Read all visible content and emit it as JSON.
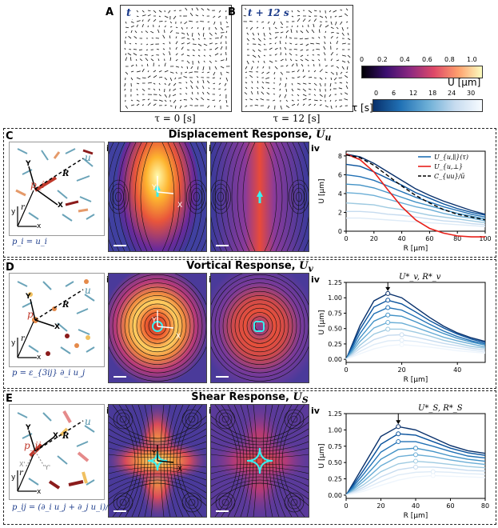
{
  "top": {
    "panelA": {
      "letter": "A",
      "time_label": "t",
      "tau_label": "τ = 0 [s]"
    },
    "panelB": {
      "letter": "B",
      "time_label": "t + 12 s",
      "tau_label": "τ = 12 [s]"
    },
    "colorbar_U": {
      "label": "U [μm]",
      "ticks": [
        "0",
        "0.2",
        "0.4",
        "0.6",
        "0.8",
        "1.0"
      ],
      "colors": [
        "#000004",
        "#3b0f70",
        "#8c2981",
        "#de4968",
        "#fe9f6d",
        "#fcfdbf"
      ]
    },
    "colorbar_tau": {
      "label": "τ [s]",
      "ticks": [
        "0",
        "6",
        "12",
        "18",
        "24",
        "30"
      ],
      "colors": [
        "#08306b",
        "#2171b5",
        "#6baed6",
        "#c6dbef",
        "#f7fbff"
      ]
    }
  },
  "sectionC": {
    "letter": "C",
    "title": "Displacement Response, ",
    "title_sym": "U",
    "title_sub": "u",
    "sub_i": "i",
    "sub_ii": "ii",
    "sub_iii": "iii",
    "sub_iv": "iv",
    "formula": "p_i = u_i",
    "schematic_labels": {
      "p": "p_i",
      "u": "u",
      "Y": "Y",
      "X": "X",
      "R": "R",
      "r": "r",
      "y": "y",
      "x": "x"
    },
    "axis_labels": {
      "Y": "Y",
      "X": "X"
    },
    "chart_legend": [
      "U_{u,∥}(τ)",
      "U_{u,⊥}",
      "C_{uu}/ū"
    ]
  },
  "sectionD": {
    "letter": "D",
    "title": "Vortical Response, ",
    "title_sym": "U",
    "title_sub": "v",
    "sub_i": "i",
    "sub_ii": "ii",
    "sub_iii": "iii",
    "sub_iv": "iv",
    "formula": "p = ε_{3ij} ∂_i u_j",
    "schematic_labels": {
      "p": "p",
      "u": "u",
      "Y": "Y",
      "X": "X",
      "R": "R",
      "r": "r",
      "y": "y",
      "x": "x"
    },
    "axis_labels": {
      "Y": "Y",
      "X": "X"
    },
    "annotation": "U*_v, R*_v"
  },
  "sectionE": {
    "letter": "E",
    "title": "Shear Response, ",
    "title_sym": "U",
    "title_sub": "S",
    "sub_i": "i",
    "sub_ii": "ii",
    "sub_iii": "iii",
    "sub_iv": "iv",
    "formula": "p_ij = (∂_i u_j + ∂_j u_i)/2",
    "schematic_labels": {
      "p": "p_ij",
      "u": "u",
      "Y": "Y",
      "X": "X",
      "R": "R",
      "r": "r",
      "y": "y",
      "x": "x",
      "Xp": "X'",
      "Yp": "Y'"
    },
    "axis_labels": {
      "Y": "Y",
      "X": "X"
    },
    "annotation": "U*_S, R*_S"
  },
  "chart_data": [
    {
      "type": "line",
      "title": "",
      "xlabel": "R [μm]",
      "ylabel": "U [μm]",
      "xlim": [
        0,
        100
      ],
      "ylim": [
        0,
        8.5
      ],
      "xticks": [
        "0",
        "20",
        "40",
        "60",
        "80",
        "100"
      ],
      "yticks": [
        "0",
        "2",
        "4",
        "6",
        "8"
      ],
      "x": [
        0,
        10,
        20,
        30,
        40,
        50,
        60,
        70,
        80,
        90,
        100
      ],
      "series": [
        {
          "name": "U_{u,∥}(τ=0)",
          "values": [
            8.2,
            7.9,
            7.2,
            6.3,
            5.4,
            4.5,
            3.8,
            3.2,
            2.7,
            2.2,
            1.8
          ]
        },
        {
          "name": "τ=3",
          "values": [
            7.1,
            6.9,
            6.3,
            5.6,
            4.9,
            4.1,
            3.5,
            2.9,
            2.4,
            2.0,
            1.7
          ]
        },
        {
          "name": "τ=6",
          "values": [
            6.0,
            5.8,
            5.4,
            4.8,
            4.2,
            3.6,
            3.1,
            2.6,
            2.2,
            1.8,
            1.5
          ]
        },
        {
          "name": "τ=9",
          "values": [
            5.0,
            4.9,
            4.6,
            4.1,
            3.6,
            3.1,
            2.7,
            2.3,
            1.9,
            1.6,
            1.3
          ]
        },
        {
          "name": "τ=12",
          "values": [
            4.1,
            4.0,
            3.8,
            3.4,
            3.0,
            2.6,
            2.3,
            1.9,
            1.6,
            1.4,
            1.1
          ]
        },
        {
          "name": "τ=18",
          "values": [
            3.0,
            2.9,
            2.8,
            2.5,
            2.3,
            2.0,
            1.7,
            1.5,
            1.3,
            1.1,
            0.9
          ]
        },
        {
          "name": "τ=24",
          "values": [
            2.1,
            2.1,
            2.0,
            1.8,
            1.7,
            1.5,
            1.3,
            1.1,
            1.0,
            0.8,
            0.7
          ]
        },
        {
          "name": "τ=30",
          "values": [
            1.4,
            1.4,
            1.3,
            1.2,
            1.1,
            1.0,
            0.9,
            0.8,
            0.7,
            0.6,
            0.5
          ]
        },
        {
          "name": "U_{u,⊥}",
          "values": [
            8.2,
            7.6,
            6.3,
            4.4,
            2.6,
            1.2,
            0.3,
            -0.2,
            -0.5,
            -0.6,
            -0.6
          ]
        },
        {
          "name": "C_{uu}/ū",
          "values": [
            8.1,
            7.8,
            7.0,
            5.9,
            4.8,
            3.8,
            3.0,
            2.3,
            1.8,
            1.5,
            1.2
          ]
        }
      ]
    },
    {
      "type": "line",
      "title": "",
      "xlabel": "R [μm]",
      "ylabel": "U [μm]",
      "xlim": [
        0,
        50
      ],
      "ylim": [
        -0.05,
        1.25
      ],
      "xticks": [
        "0",
        "20",
        "40"
      ],
      "yticks": [
        "0.00",
        "0.25",
        "0.50",
        "0.75",
        "1.00",
        "1.25"
      ],
      "x": [
        0,
        5,
        10,
        15,
        20,
        25,
        30,
        35,
        40,
        45,
        50
      ],
      "series": [
        {
          "name": "τ=0",
          "values": [
            0,
            0.55,
            0.95,
            1.07,
            1.0,
            0.84,
            0.68,
            0.54,
            0.43,
            0.35,
            0.29
          ]
        },
        {
          "name": "τ=3",
          "values": [
            0,
            0.49,
            0.85,
            0.96,
            0.9,
            0.77,
            0.63,
            0.51,
            0.41,
            0.33,
            0.27
          ]
        },
        {
          "name": "τ=6",
          "values": [
            0,
            0.42,
            0.74,
            0.84,
            0.8,
            0.69,
            0.57,
            0.46,
            0.37,
            0.3,
            0.25
          ]
        },
        {
          "name": "τ=9",
          "values": [
            0,
            0.35,
            0.62,
            0.72,
            0.7,
            0.61,
            0.51,
            0.42,
            0.34,
            0.28,
            0.23
          ]
        },
        {
          "name": "τ=12",
          "values": [
            0,
            0.29,
            0.51,
            0.6,
            0.59,
            0.52,
            0.44,
            0.36,
            0.3,
            0.25,
            0.2
          ]
        },
        {
          "name": "τ=15",
          "values": [
            0,
            0.23,
            0.41,
            0.49,
            0.49,
            0.44,
            0.38,
            0.31,
            0.26,
            0.21,
            0.18
          ]
        },
        {
          "name": "τ=18",
          "values": [
            0,
            0.18,
            0.32,
            0.39,
            0.4,
            0.36,
            0.31,
            0.26,
            0.22,
            0.18,
            0.15
          ]
        },
        {
          "name": "τ=21",
          "values": [
            0,
            0.13,
            0.24,
            0.3,
            0.31,
            0.29,
            0.25,
            0.21,
            0.18,
            0.15,
            0.12
          ]
        },
        {
          "name": "τ=24",
          "values": [
            0,
            0.09,
            0.17,
            0.22,
            0.24,
            0.22,
            0.2,
            0.17,
            0.14,
            0.12,
            0.1
          ]
        }
      ]
    },
    {
      "type": "line",
      "title": "",
      "xlabel": "R [μm]",
      "ylabel": "U [μm]",
      "xlim": [
        0,
        80
      ],
      "ylim": [
        -0.05,
        1.25
      ],
      "xticks": [
        "0",
        "20",
        "40",
        "60",
        "80"
      ],
      "yticks": [
        "0.00",
        "0.25",
        "0.50",
        "0.75",
        "1.00",
        "1.25"
      ],
      "x": [
        0,
        10,
        20,
        30,
        40,
        50,
        60,
        70,
        80
      ],
      "series": [
        {
          "name": "τ=0",
          "values": [
            0,
            0.45,
            0.9,
            1.05,
            1.0,
            0.88,
            0.76,
            0.68,
            0.64
          ]
        },
        {
          "name": "τ=3",
          "values": [
            0,
            0.38,
            0.78,
            0.94,
            0.92,
            0.82,
            0.72,
            0.65,
            0.61
          ]
        },
        {
          "name": "τ=6",
          "values": [
            0,
            0.32,
            0.66,
            0.82,
            0.82,
            0.75,
            0.67,
            0.6,
            0.57
          ]
        },
        {
          "name": "τ=9",
          "values": [
            0,
            0.26,
            0.55,
            0.7,
            0.72,
            0.67,
            0.6,
            0.55,
            0.52
          ]
        },
        {
          "name": "τ=12",
          "values": [
            0,
            0.21,
            0.45,
            0.59,
            0.62,
            0.59,
            0.54,
            0.5,
            0.47
          ]
        },
        {
          "name": "τ=15",
          "values": [
            0,
            0.16,
            0.36,
            0.48,
            0.52,
            0.5,
            0.47,
            0.44,
            0.42
          ]
        },
        {
          "name": "τ=18",
          "values": [
            0,
            0.12,
            0.28,
            0.39,
            0.43,
            0.43,
            0.41,
            0.38,
            0.37
          ]
        },
        {
          "name": "τ=21",
          "values": [
            0,
            0.09,
            0.21,
            0.31,
            0.35,
            0.36,
            0.35,
            0.33,
            0.32
          ]
        },
        {
          "name": "τ=24",
          "values": [
            0,
            0.06,
            0.15,
            0.23,
            0.28,
            0.3,
            0.29,
            0.28,
            0.27
          ]
        }
      ]
    }
  ]
}
